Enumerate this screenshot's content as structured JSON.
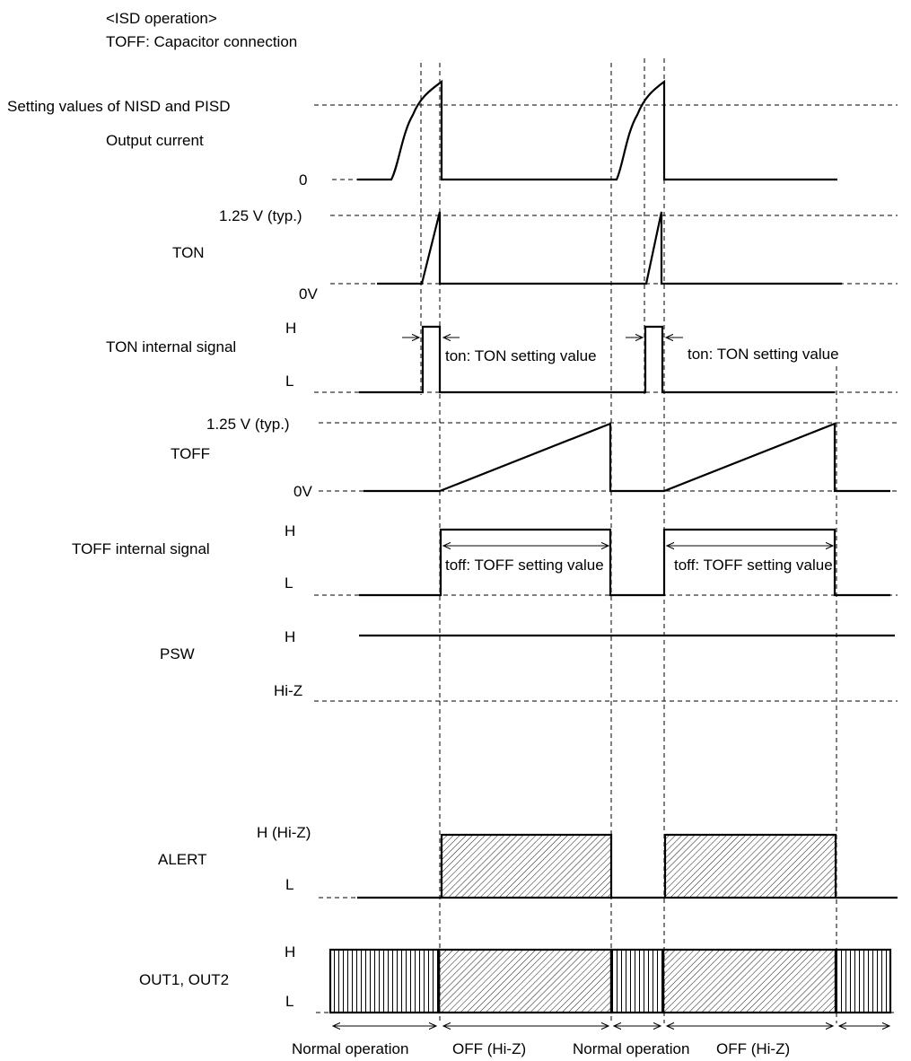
{
  "header": {
    "title": "<ISD operation>",
    "subtitle": "TOFF: Capacitor connection"
  },
  "signals": {
    "output_current": {
      "name": "Output current",
      "high_label": "Setting values of NISD and PISD",
      "low_label": "0"
    },
    "ton": {
      "name": "TON",
      "high_label": "1.25 V (typ.)",
      "low_label": "0V"
    },
    "ton_internal": {
      "name": "TON internal signal",
      "high_label": "H",
      "low_label": "L",
      "annotation_1": "ton: TON setting value",
      "annotation_2": "ton: TON setting value"
    },
    "toff": {
      "name": "TOFF",
      "high_label": "1.25 V (typ.)",
      "low_label": "0V"
    },
    "toff_internal": {
      "name": "TOFF internal signal",
      "high_label": "H",
      "low_label": "L",
      "annotation_1": "toff: TOFF setting value",
      "annotation_2": "toff: TOFF setting value"
    },
    "psw": {
      "name": "PSW",
      "high_label": "H",
      "low_label": "Hi-Z"
    },
    "alert": {
      "name": "ALERT",
      "high_label": "H (Hi-Z)",
      "low_label": "L"
    },
    "out": {
      "name": "OUT1, OUT2",
      "high_label": "H",
      "low_label": "L"
    }
  },
  "phases": [
    "Normal operation",
    "OFF (Hi-Z)",
    "Normal operation",
    "OFF (Hi-Z)"
  ]
}
